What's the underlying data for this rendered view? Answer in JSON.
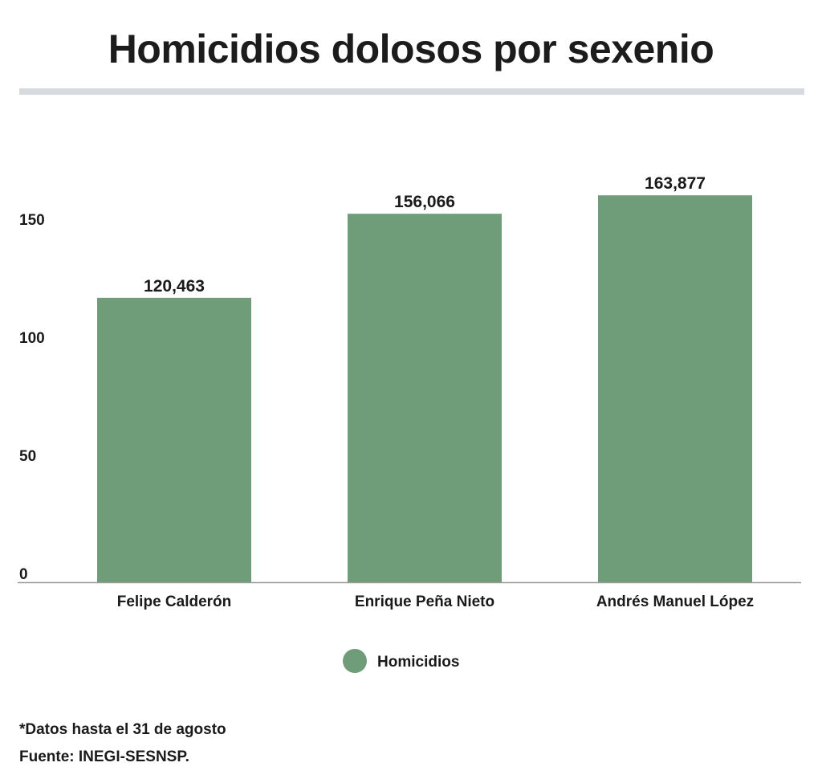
{
  "chart_data": {
    "type": "bar",
    "title": "Homicidios dolosos por sexenio",
    "categories": [
      "Felipe Calderón",
      "Enrique Peña Nieto",
      "Andrés Manuel López"
    ],
    "series": [
      {
        "name": "Homicidios",
        "values": [
          120463,
          156066,
          163877
        ],
        "value_labels": [
          "120,463",
          "156,066",
          "163,877"
        ],
        "color": "#6f9d79"
      }
    ],
    "y_scale_divisor": 1000,
    "yticks": [
      0,
      50,
      100,
      150
    ],
    "ylim": [
      0,
      180
    ],
    "grid": false,
    "legend_position": "bottom-center"
  },
  "footnotes": {
    "note": "*Datos hasta el 31 de agosto",
    "source": "Fuente: INEGI-SESNSP."
  },
  "colors": {
    "bar": "#6f9d79",
    "text": "#1a1a1a",
    "rule": "#d7dbe0",
    "axis": "#9a9a9a"
  }
}
